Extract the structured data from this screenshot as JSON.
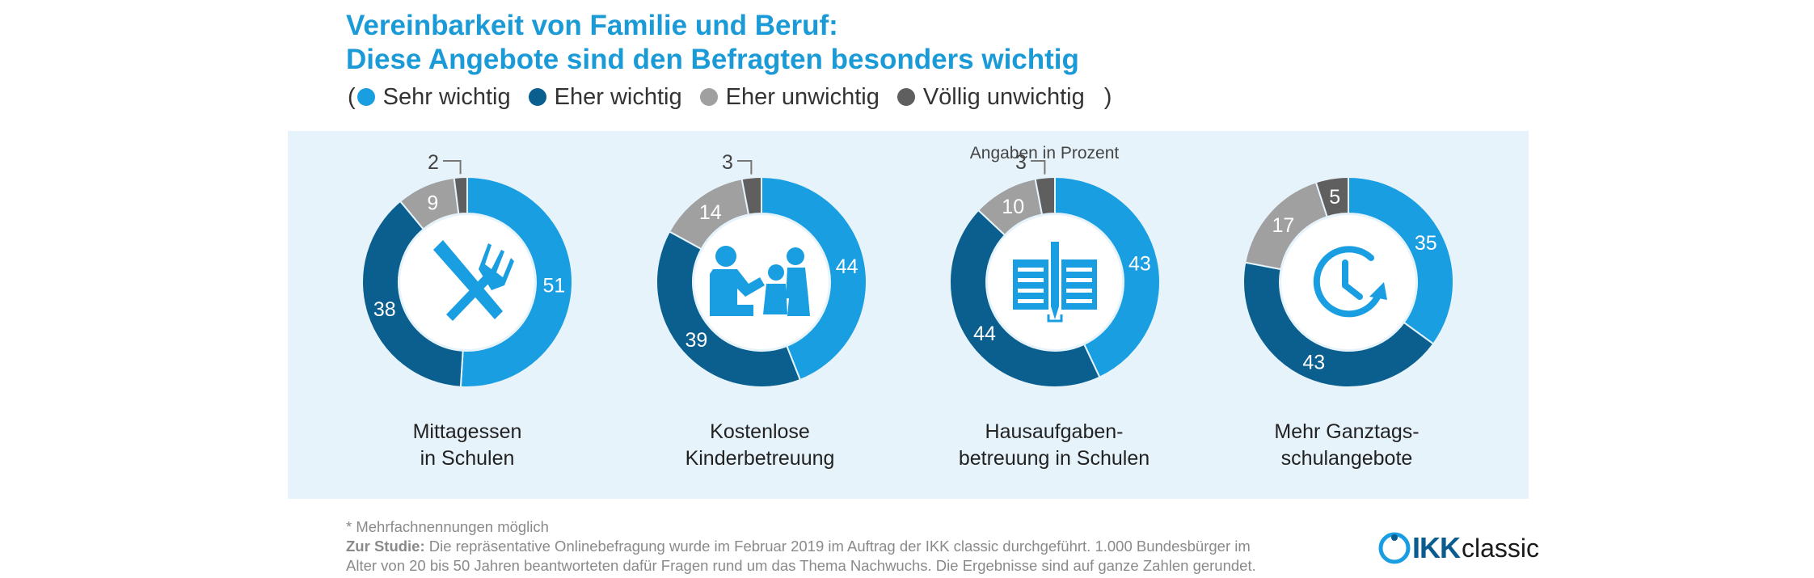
{
  "title_line1": "Vereinbarkeit von Familie und Beruf:",
  "title_line2": "Diese Angebote sind den Befragten besonders wichtig",
  "legend": {
    "open_paren": "(",
    "close_paren": ")",
    "items": [
      {
        "label": "Sehr wichtig",
        "color": "#1a9ee2"
      },
      {
        "label": "Eher wichtig",
        "color": "#0a5f8f"
      },
      {
        "label": "Eher unwichtig",
        "color": "#a0a0a0"
      },
      {
        "label": "Völlig unwichtig",
        "color": "#5f5f5f"
      }
    ]
  },
  "unit_note": "Angaben in Prozent",
  "chart_data": {
    "type": "pie",
    "variant": "donut",
    "unit": "%",
    "series_names": [
      "Sehr wichtig",
      "Eher wichtig",
      "Eher unwichtig",
      "Völlig unwichtig"
    ],
    "colors": [
      "#1a9ee2",
      "#0a5f8f",
      "#a0a0a0",
      "#5f5f5f"
    ],
    "charts": [
      {
        "label_line1": "Mittagessen",
        "label_line2": "in Schulen",
        "icon": "fork-knife-icon",
        "values": [
          51,
          38,
          9,
          2
        ]
      },
      {
        "label_line1": "Kostenlose",
        "label_line2": "Kinderbetreuung",
        "icon": "childcare-icon",
        "values": [
          44,
          39,
          14,
          3
        ]
      },
      {
        "label_line1": "Hausaufgaben-",
        "label_line2": "betreuung in Schulen",
        "icon": "homework-icon",
        "values": [
          43,
          44,
          10,
          3
        ]
      },
      {
        "label_line1": "Mehr Ganztags-",
        "label_line2": "schulangebote",
        "icon": "clock-icon",
        "values": [
          35,
          43,
          17,
          5
        ]
      }
    ]
  },
  "footnote": {
    "line1": "* Mehrfachnennungen möglich",
    "study_label": "Zur Studie:",
    "line2_rest": " Die repräsentative Onlinebefragung wurde im Februar 2019 im Auftrag der IKK classic durchgeführt. 1.000 Bundesbürger im",
    "line3": "Alter von 20 bis 50 Jahren beantworteten dafür Fragen rund um das Thema Nachwuchs. Die Ergebnisse sind auf ganze Zahlen gerundet."
  },
  "logo": {
    "ikk": "IKK",
    "classic": "classic"
  }
}
